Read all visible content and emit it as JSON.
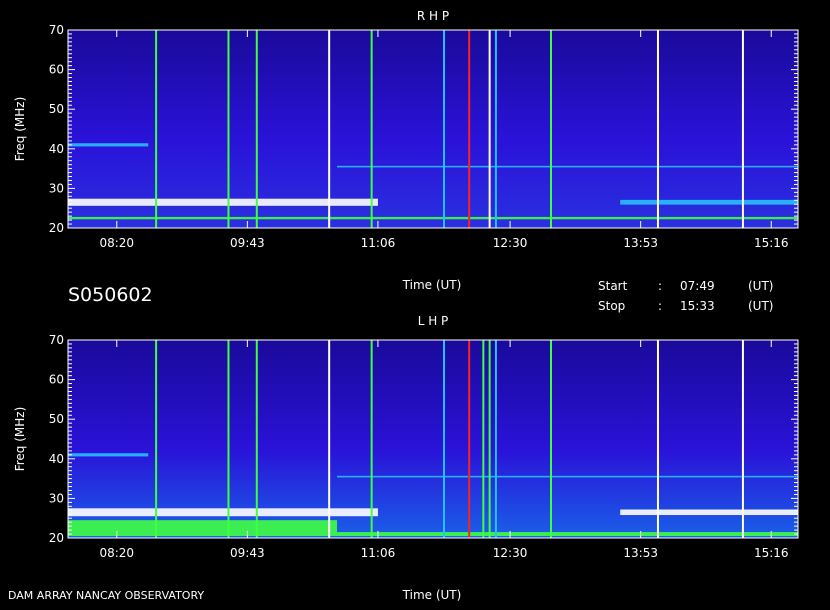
{
  "header": {
    "date_code": "S050602",
    "start_label": "Start",
    "stop_label": "Stop",
    "sep": ":",
    "start_time": "07:49",
    "stop_time": "15:33",
    "ut": "(UT)"
  },
  "footer": {
    "instrument": "DAM ARRAY   NANCAY OBSERVATORY"
  },
  "colors": {
    "background": "#000000",
    "base_blue": "#2a12d8",
    "deep_blue": "#1a0a9a",
    "cyan": "#28c0ff",
    "green": "#40ff40",
    "white": "#ffffff",
    "red": "#ff2020"
  },
  "chart_data": [
    {
      "type": "heatmap",
      "title": "R H P",
      "xlabel": "Time (UT)",
      "ylabel": "Freq (MHz)",
      "xlim": [
        "07:49",
        "15:33"
      ],
      "ylim": [
        20,
        70
      ],
      "x_ticks": [
        "08:20",
        "09:43",
        "11:06",
        "12:30",
        "13:53",
        "15:16"
      ],
      "y_ticks": [
        20,
        30,
        40,
        50,
        60,
        70
      ],
      "bands": [
        {
          "f": 26.5,
          "w": 1.8,
          "color": "white",
          "x0": "07:49",
          "x1": "11:06"
        },
        {
          "f": 26.5,
          "w": 1.2,
          "color": "cyan",
          "x0": "13:40",
          "x1": "15:33"
        },
        {
          "f": 22.5,
          "w": 0.6,
          "color": "green",
          "x0": "07:49",
          "x1": "15:33"
        },
        {
          "f": 41.0,
          "w": 0.8,
          "color": "cyan",
          "x0": "07:49",
          "x1": "08:40"
        },
        {
          "f": 35.5,
          "w": 0.4,
          "color": "cyan",
          "x0": "10:40",
          "x1": "15:33"
        }
      ],
      "bursts": [
        {
          "t": "08:45",
          "color": "green"
        },
        {
          "t": "09:31",
          "color": "green"
        },
        {
          "t": "09:49",
          "color": "green"
        },
        {
          "t": "10:35",
          "color": "white"
        },
        {
          "t": "11:02",
          "color": "green"
        },
        {
          "t": "11:48",
          "color": "cyan"
        },
        {
          "t": "12:04",
          "color": "red"
        },
        {
          "t": "12:17",
          "color": "white"
        },
        {
          "t": "12:21",
          "color": "cyan"
        },
        {
          "t": "12:56",
          "color": "green"
        },
        {
          "t": "14:04",
          "color": "white"
        },
        {
          "t": "14:58",
          "color": "white"
        }
      ]
    },
    {
      "type": "heatmap",
      "title": "L H P",
      "xlabel": "Time (UT)",
      "ylabel": "Freq (MHz)",
      "xlim": [
        "07:49",
        "15:33"
      ],
      "ylim": [
        20,
        70
      ],
      "x_ticks": [
        "08:20",
        "09:43",
        "11:06",
        "12:30",
        "13:53",
        "15:16"
      ],
      "y_ticks": [
        20,
        30,
        40,
        50,
        60,
        70
      ],
      "bands": [
        {
          "f": 26.5,
          "w": 2.0,
          "color": "white",
          "x0": "07:49",
          "x1": "11:06"
        },
        {
          "f": 26.5,
          "w": 1.4,
          "color": "white",
          "x0": "13:40",
          "x1": "15:33"
        },
        {
          "f": 23.0,
          "w": 3.0,
          "color": "green",
          "x0": "07:49",
          "x1": "10:40"
        },
        {
          "f": 21.0,
          "w": 1.0,
          "color": "green",
          "x0": "07:49",
          "x1": "15:33"
        },
        {
          "f": 41.0,
          "w": 0.8,
          "color": "cyan",
          "x0": "07:49",
          "x1": "08:40"
        },
        {
          "f": 35.5,
          "w": 0.4,
          "color": "cyan",
          "x0": "10:40",
          "x1": "15:33"
        }
      ],
      "bursts": [
        {
          "t": "08:45",
          "color": "green"
        },
        {
          "t": "09:31",
          "color": "green"
        },
        {
          "t": "09:49",
          "color": "green"
        },
        {
          "t": "10:35",
          "color": "white"
        },
        {
          "t": "11:02",
          "color": "green"
        },
        {
          "t": "11:48",
          "color": "cyan"
        },
        {
          "t": "12:04",
          "color": "red"
        },
        {
          "t": "12:13",
          "color": "green"
        },
        {
          "t": "12:17",
          "color": "green"
        },
        {
          "t": "12:21",
          "color": "cyan"
        },
        {
          "t": "12:56",
          "color": "green"
        },
        {
          "t": "14:04",
          "color": "white"
        },
        {
          "t": "14:58",
          "color": "white"
        }
      ]
    }
  ]
}
